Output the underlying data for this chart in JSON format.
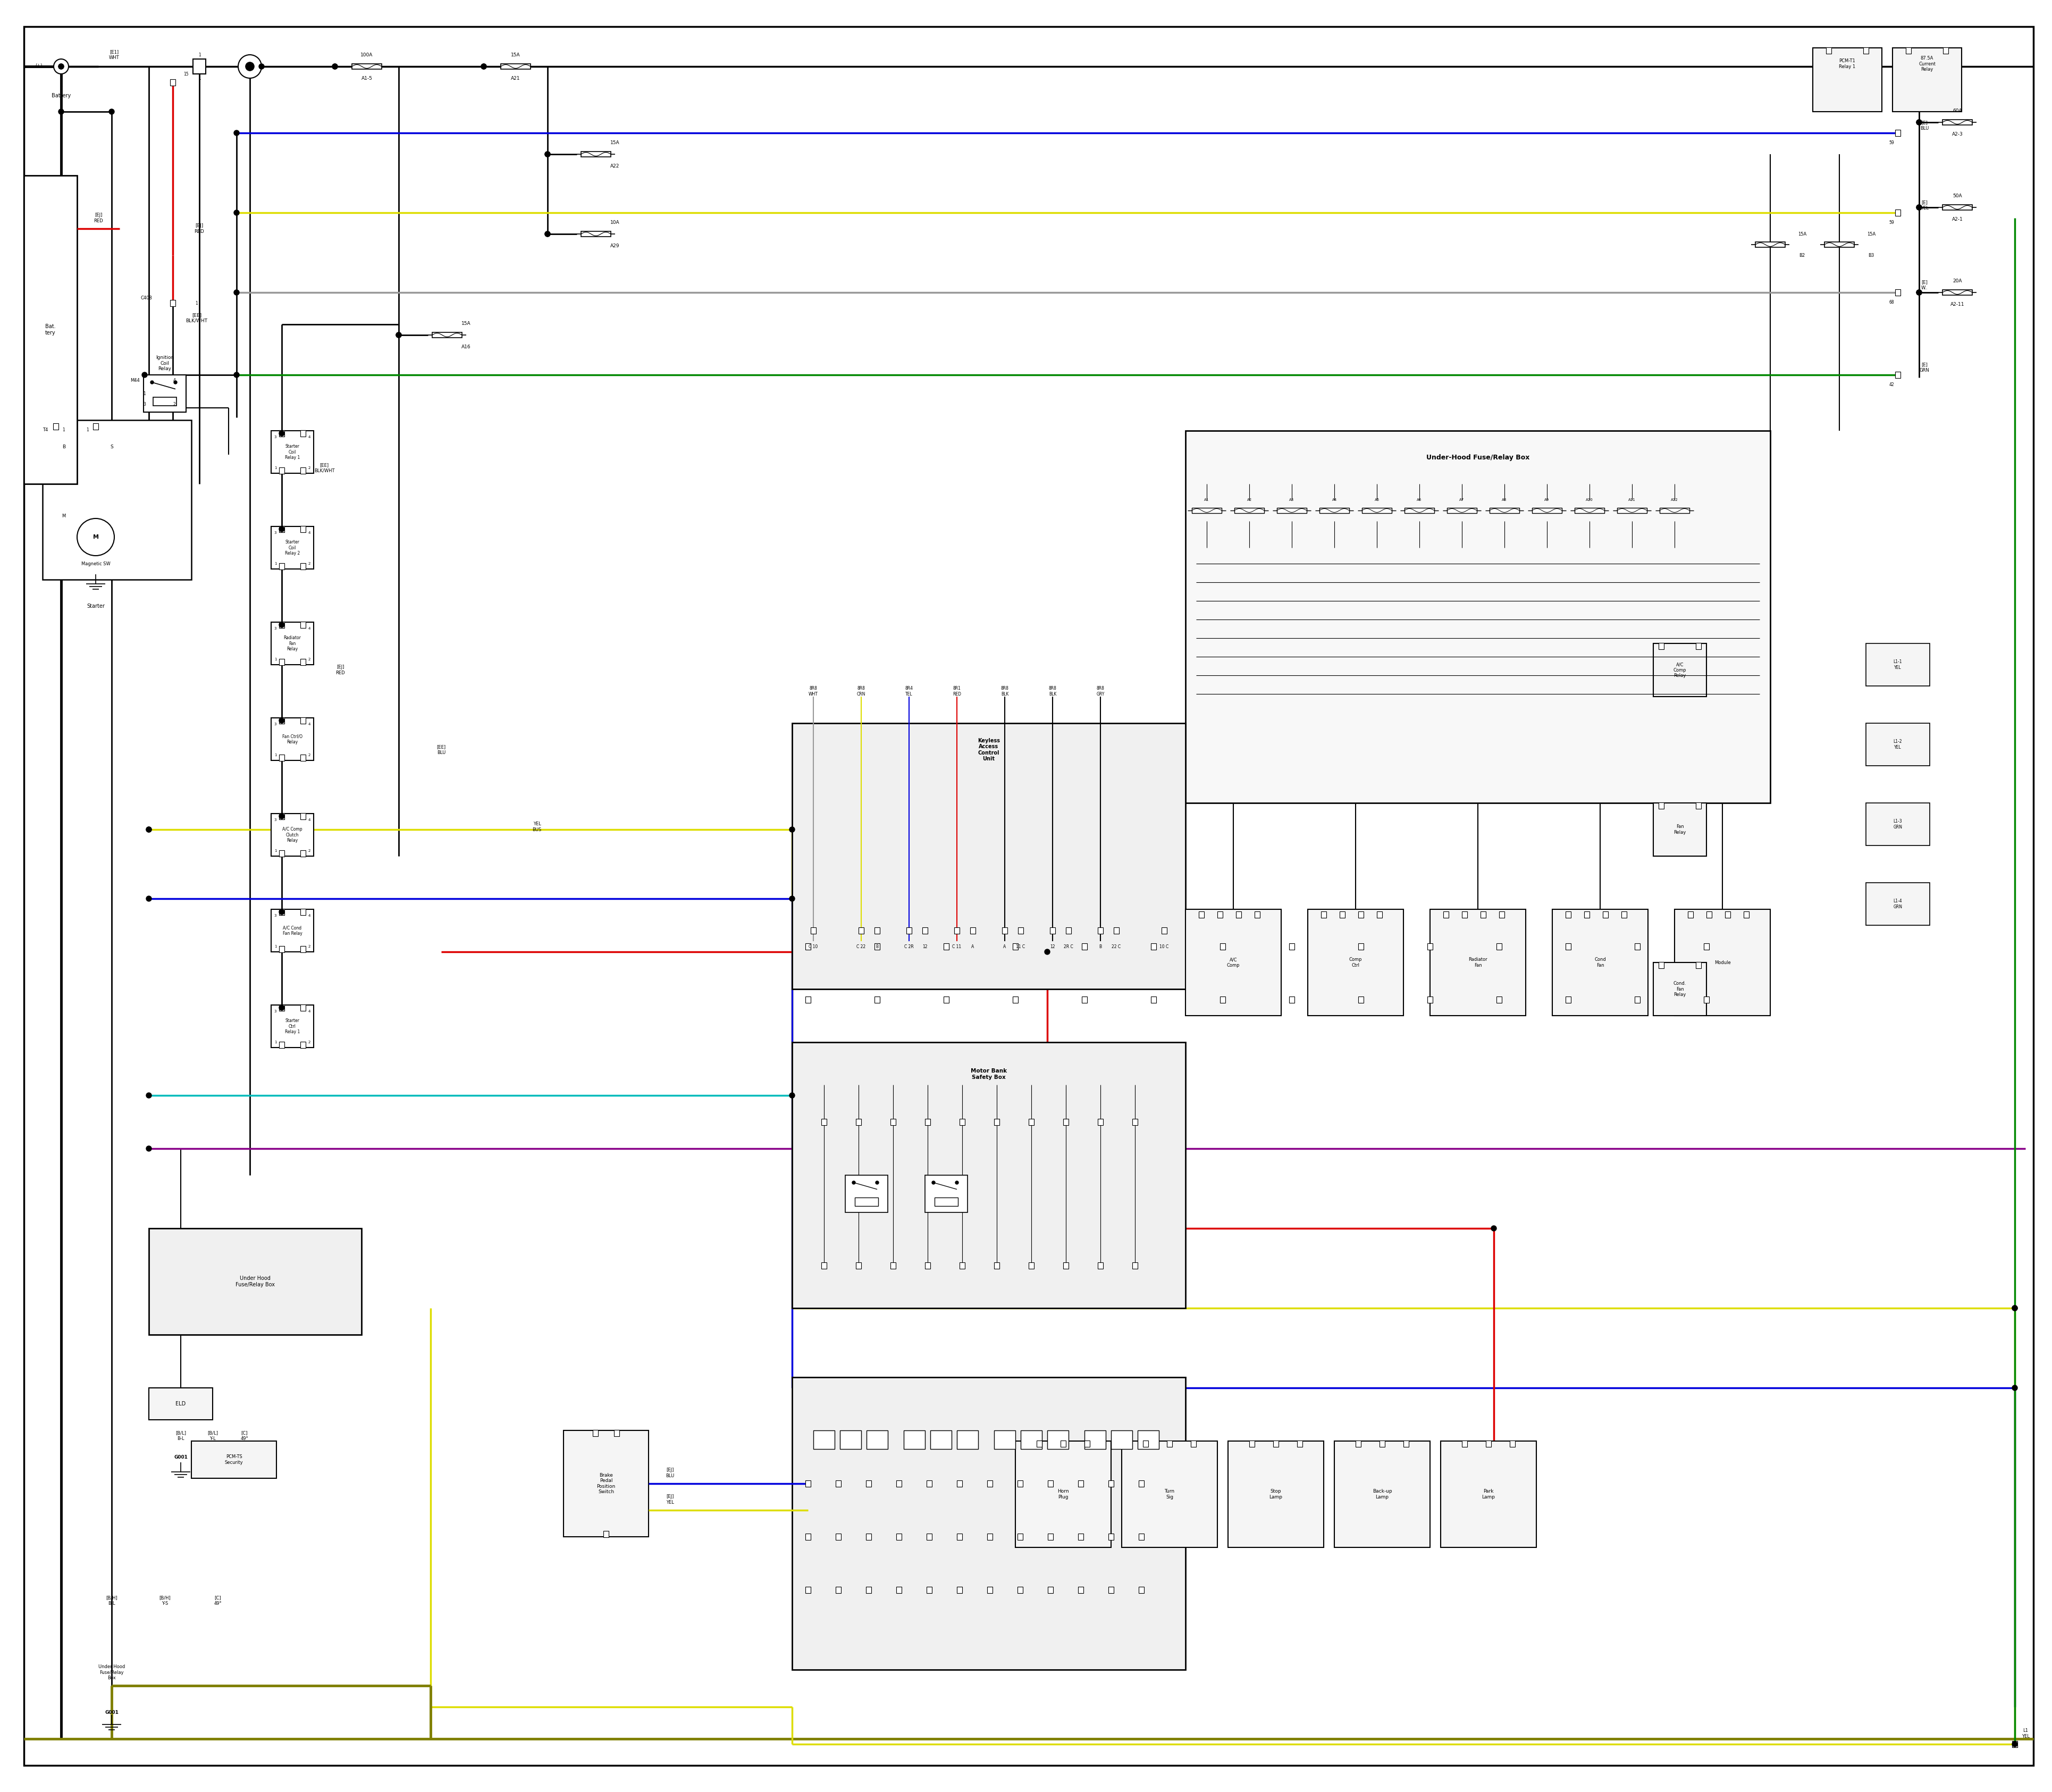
{
  "bg_color": "#ffffff",
  "fig_width": 38.4,
  "fig_height": 33.5,
  "colors": {
    "black": "#000000",
    "red": "#dd0000",
    "blue": "#0000dd",
    "yellow": "#dddd00",
    "green": "#008800",
    "cyan": "#00bbbb",
    "purple": "#880088",
    "gray": "#999999",
    "olive": "#808000",
    "dark_gray": "#555555"
  },
  "lw": {
    "thin": 1.0,
    "med": 1.5,
    "thick": 2.0,
    "bus": 2.5,
    "heavy": 3.5
  }
}
